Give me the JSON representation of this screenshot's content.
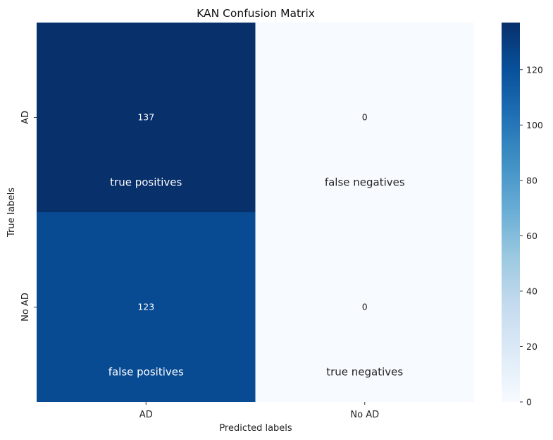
{
  "chart_data": {
    "type": "heatmap",
    "title": "KAN Confusion Matrix",
    "xlabel": "Predicted labels",
    "ylabel": "True labels",
    "x_categories": [
      "AD",
      "No AD"
    ],
    "y_categories": [
      "AD",
      "No AD"
    ],
    "values": [
      [
        137,
        0
      ],
      [
        123,
        0
      ]
    ],
    "annotations": [
      [
        "true positives",
        "false negatives"
      ],
      [
        "false positives",
        "true negatives"
      ]
    ],
    "colorbar": {
      "min": 0,
      "max": 137,
      "ticks": [
        0,
        20,
        40,
        60,
        80,
        100,
        120
      ],
      "colormap": "Blues"
    }
  }
}
